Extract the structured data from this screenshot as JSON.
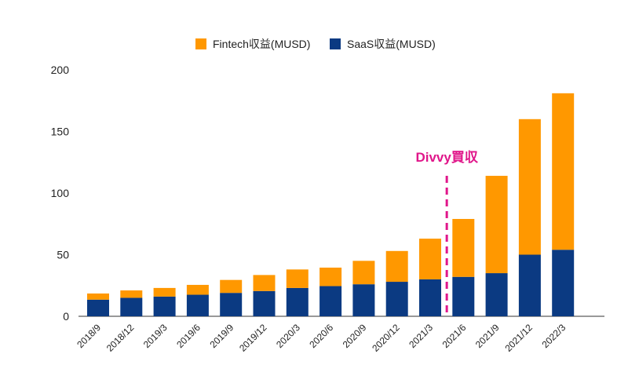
{
  "chart_data": {
    "type": "bar",
    "stacked": true,
    "categories": [
      "2018/9",
      "2018/12",
      "2019/3",
      "2019/6",
      "2019/9",
      "2019/12",
      "2020/3",
      "2020/6",
      "2020/9",
      "2020/12",
      "2021/3",
      "2021/6",
      "2021/9",
      "2021/12",
      "2022/3"
    ],
    "series": [
      {
        "name": "SaaS収益(MUSD)",
        "color": "#0b3a82",
        "values": [
          13.5,
          15,
          16,
          17.5,
          19,
          20.5,
          23,
          24.5,
          26,
          28,
          30,
          32,
          35,
          50,
          54
        ]
      },
      {
        "name": "Fintech収益(MUSD)",
        "color": "#ff9800",
        "values": [
          5,
          6,
          7,
          8,
          10.5,
          13,
          15,
          15,
          19,
          25,
          33,
          47,
          79,
          110,
          127
        ]
      }
    ],
    "ylim": [
      0,
      200
    ],
    "yticks": [
      0,
      50,
      100,
      150,
      200
    ],
    "grid": false,
    "legend": {
      "position": "top",
      "entries": [
        "Fintech収益(MUSD)",
        "SaaS収益(MUSD)"
      ]
    },
    "annotation": {
      "text": "Divvy買収",
      "between": [
        "2021/3",
        "2021/6"
      ],
      "color": "#e0168a",
      "style": "dashed-line"
    }
  }
}
